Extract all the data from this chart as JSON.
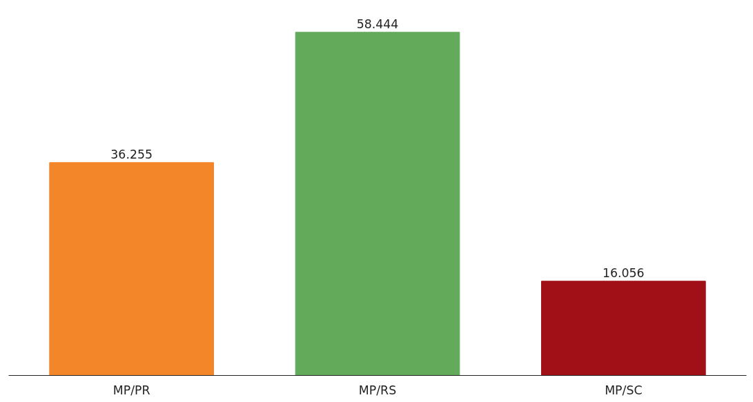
{
  "chart_data": {
    "type": "bar",
    "categories": [
      "MP/PR",
      "MP/RS",
      "MP/SC"
    ],
    "values": [
      36.255,
      58.444,
      16.056
    ],
    "colors": [
      "#f4862a",
      "#63aa5b",
      "#a01016"
    ],
    "data_labels": true,
    "tick_labels": "x"
  }
}
